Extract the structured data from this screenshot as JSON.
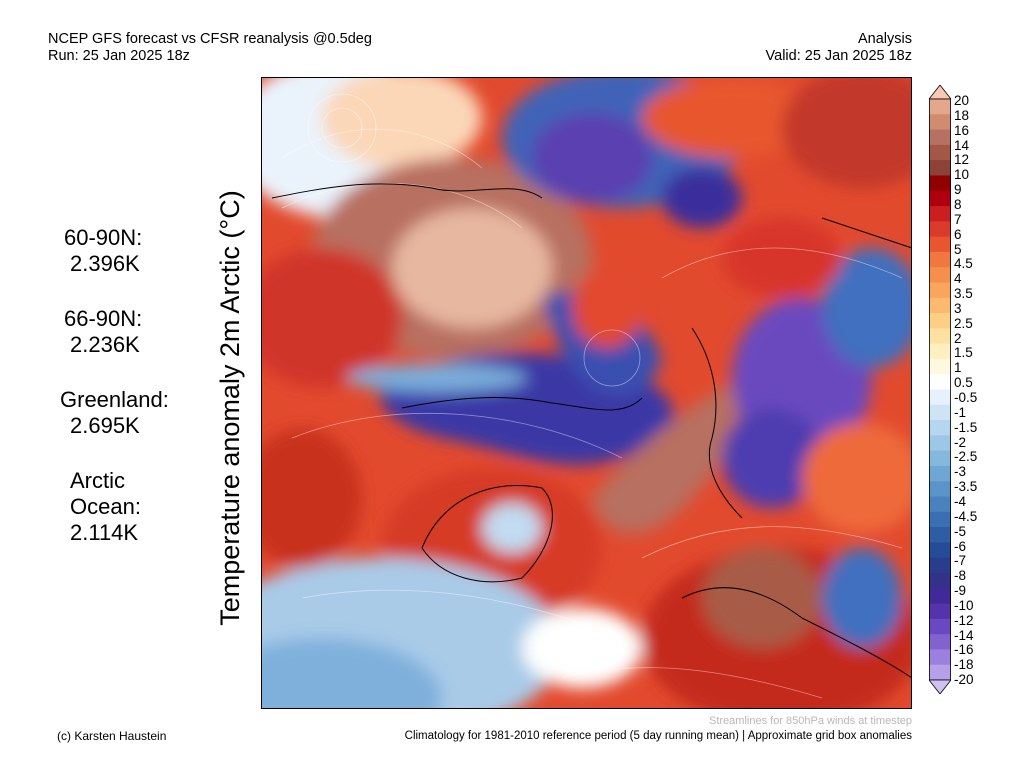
{
  "header": {
    "title_line1": "NCEP GFS forecast vs CFSR reanalysis @0.5deg",
    "title_line2": "Run: 25 Jan 2025 18z",
    "mode": "Analysis",
    "valid": "Valid: 25 Jan 2025 18z"
  },
  "variable_title": "Temperature anomaly 2m Arctic (°C)",
  "stats": [
    {
      "region": "60-90N:",
      "value": "2.396K"
    },
    {
      "region": "66-90N:",
      "value": "2.236K"
    },
    {
      "region": "Greenland:",
      "value": "2.695K"
    },
    {
      "region_line1": "Arctic",
      "region_line2": "Ocean:",
      "value": "2.114K"
    }
  ],
  "footer": {
    "credit": "(c) Karsten Haustein",
    "streamlines_note": "Streamlines for 850hPa winds at timestep",
    "climatology_note": "Climatology for 1981-2010 reference period (5 day running mean) | Approximate grid box anomalies"
  },
  "colorbar": {
    "labels": [
      "20",
      "18",
      "16",
      "14",
      "12",
      "10",
      "9",
      "8",
      "7",
      "6",
      "5",
      "4.5",
      "4",
      "3.5",
      "3",
      "2.5",
      "2",
      "1.5",
      "1",
      "0.5",
      "-0.5",
      "-1",
      "-1.5",
      "-2",
      "-2.5",
      "-3",
      "-3.5",
      "-4",
      "-4.5",
      "-5",
      "-6",
      "-7",
      "-8",
      "-9",
      "-10",
      "-12",
      "-14",
      "-16",
      "-18",
      "-20"
    ],
    "colors": [
      "#f7c8b4",
      "#e4a78b",
      "#cf8c70",
      "#b87060",
      "#a25747",
      "#8c4236",
      "#900000",
      "#b00010",
      "#c91f1f",
      "#dc3a2a",
      "#e8562f",
      "#f07840",
      "#f58f4e",
      "#f9a55e",
      "#fbba70",
      "#fdcf86",
      "#fde1a0",
      "#fdefc0",
      "#fff8e0",
      "#ffffff",
      "#e6f2fb",
      "#cde4f5",
      "#b4d6ee",
      "#9cc7e6",
      "#86b7dd",
      "#70a6d3",
      "#5b94c8",
      "#4982bd",
      "#3a6fb1",
      "#2e5ca5",
      "#264b98",
      "#2a3c8c",
      "#33318a",
      "#41299a",
      "#5533aa",
      "#6a48bf",
      "#8262cf",
      "#9c80dd",
      "#b6a0e9",
      "#cfc2f3"
    ]
  },
  "colors": {
    "warm_strong": "#c62818",
    "warm_brown": "#b06a52",
    "cold_deep": "#3a2a9a",
    "cold_blue": "#3f6fbf",
    "ocean_pale": "#a9cbe8"
  }
}
